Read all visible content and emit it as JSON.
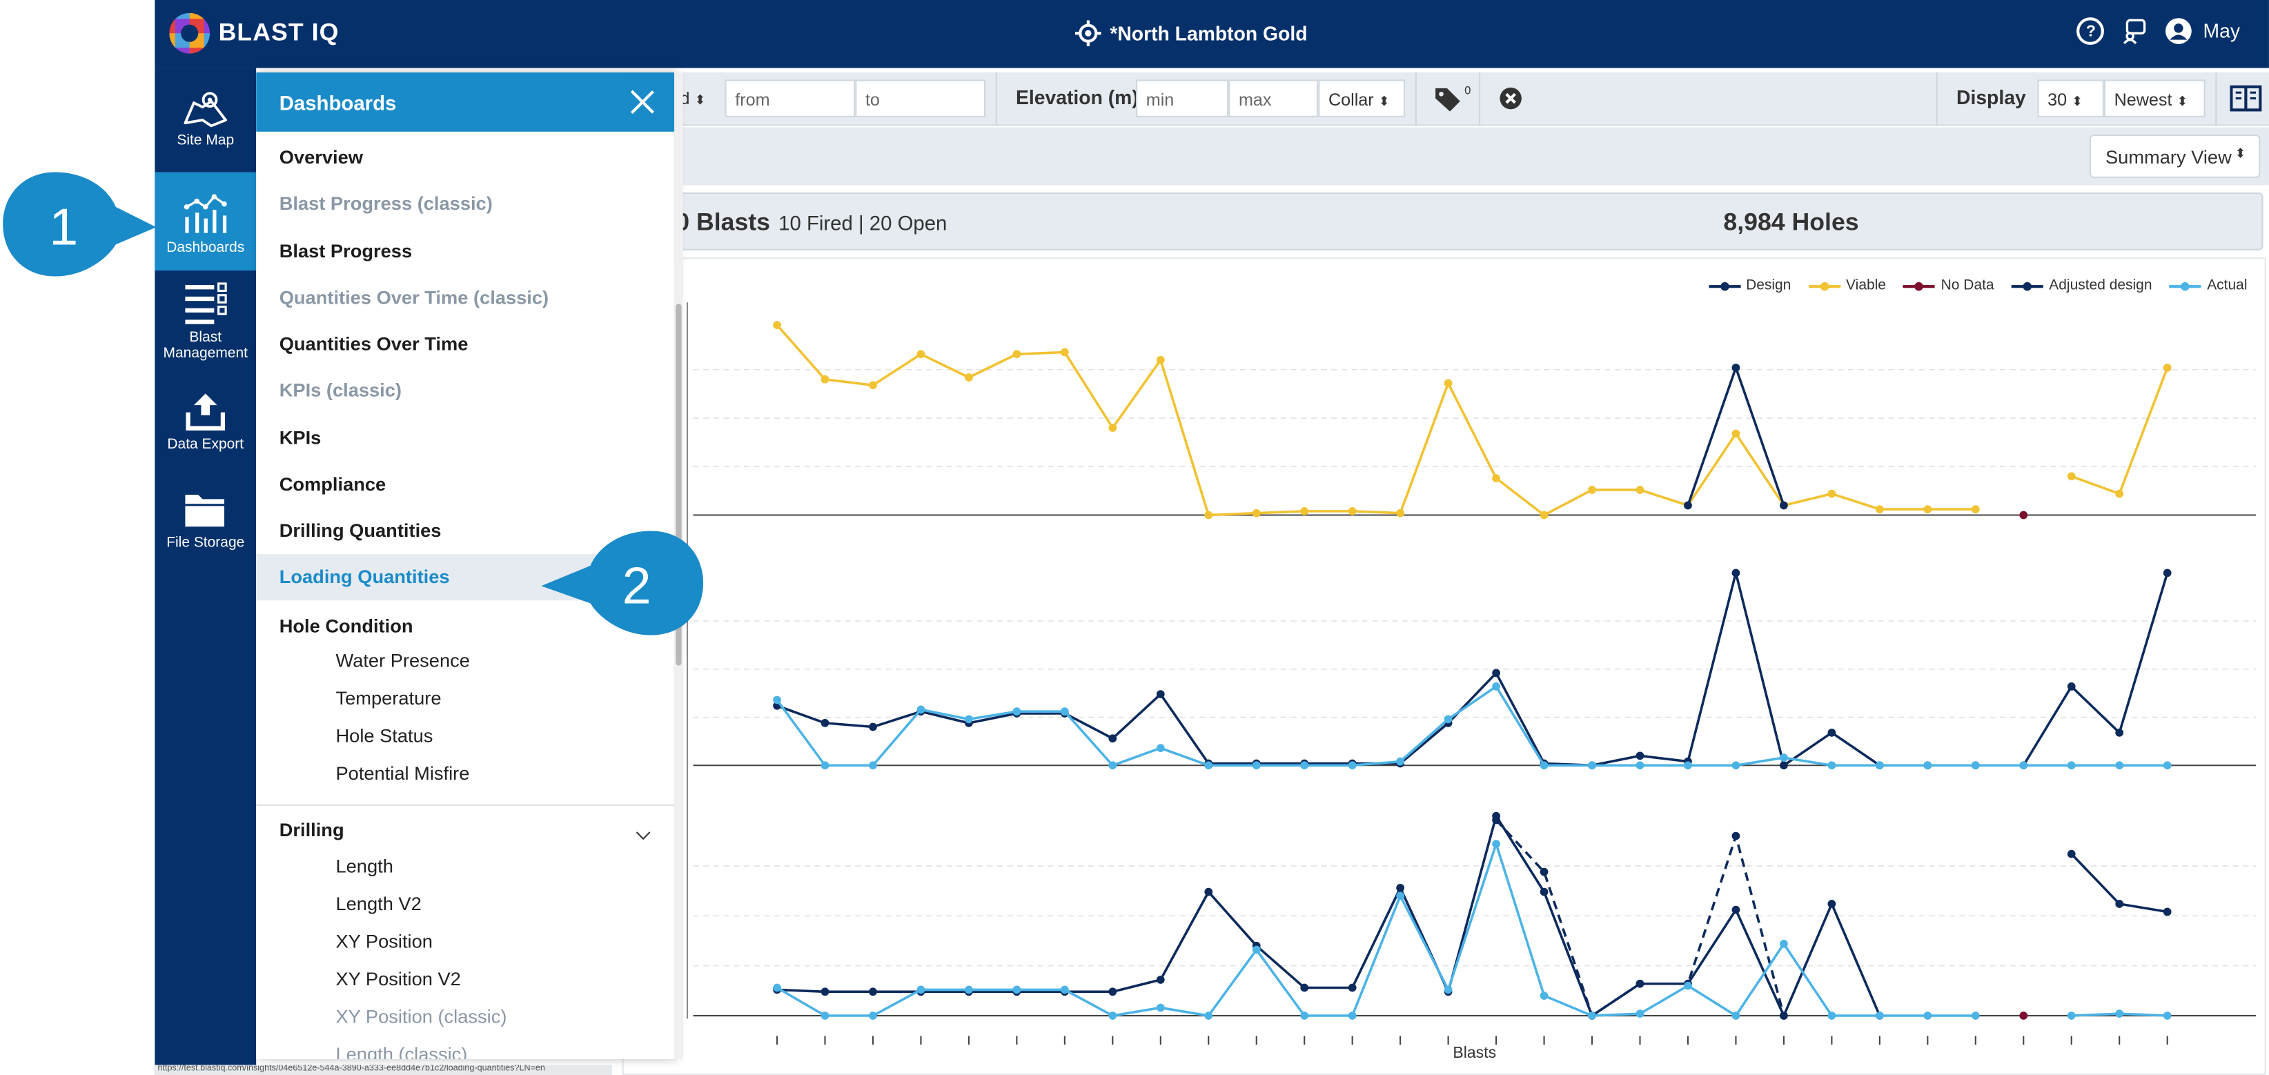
{
  "app": {
    "brand": "BLAST IQ",
    "site": "*North Lambton Gold"
  },
  "header": {
    "user": "May"
  },
  "rail": [
    {
      "key": "site-map",
      "label": "Site Map"
    },
    {
      "key": "dashboards",
      "label": "Dashboards"
    },
    {
      "key": "blast-management",
      "label1": "Blast",
      "label2": "Management"
    },
    {
      "key": "data-export",
      "label": "Data Export"
    },
    {
      "key": "file-storage",
      "label": "File Storage"
    }
  ],
  "filters": {
    "partial_select": "d",
    "from_placeholder": "from",
    "to_placeholder": "to",
    "elevation_label": "Elevation (m)",
    "min_placeholder": "min",
    "max_placeholder": "max",
    "collar": "Collar",
    "tag_count": "0",
    "display_label": "Display",
    "display_count": "30",
    "sort": "Newest"
  },
  "summary_view": "Summary View",
  "stats": {
    "blasts": "0 Blasts",
    "fired_open": "10 Fired | 20 Open",
    "holes": "8,984 Holes"
  },
  "panel": {
    "title": "Dashboards",
    "items": [
      {
        "label": "Overview",
        "style": "bold"
      },
      {
        "label": "Blast Progress (classic)",
        "style": "muted"
      },
      {
        "label": "Blast Progress",
        "style": "bold"
      },
      {
        "label": "Quantities Over Time (classic)",
        "style": "muted"
      },
      {
        "label": "Quantities Over Time",
        "style": "bold"
      },
      {
        "label": "KPIs (classic)",
        "style": "muted"
      },
      {
        "label": "KPIs",
        "style": "bold"
      },
      {
        "label": "Compliance",
        "style": "bold"
      },
      {
        "label": "Drilling Quantities",
        "style": "bold"
      },
      {
        "label": "Loading Quantities",
        "style": "active"
      },
      {
        "label": "Hole Condition",
        "style": "bold"
      },
      {
        "label": "Water Presence",
        "style": "sub"
      },
      {
        "label": "Temperature",
        "style": "sub"
      },
      {
        "label": "Hole Status",
        "style": "sub"
      },
      {
        "label": "Potential Misfire",
        "style": "sub"
      },
      {
        "label": "Drilling",
        "style": "bold"
      },
      {
        "label": "Length",
        "style": "sub"
      },
      {
        "label": "Length V2",
        "style": "sub"
      },
      {
        "label": "XY Position",
        "style": "sub"
      },
      {
        "label": "XY Position V2",
        "style": "sub"
      },
      {
        "label": "XY Position (classic)",
        "style": "submuted"
      },
      {
        "label": "Length (classic)",
        "style": "submuted"
      }
    ]
  },
  "callouts": [
    "1",
    "2"
  ],
  "status_url": "https://test.blastiq.com/insights/04e6512e-544a-3890-a333-ee8dd4e7b1c2/loading-quantities?LN=en",
  "chart_data": {
    "type": "line",
    "xlabel": "Blasts",
    "legend": [
      {
        "name": "Design",
        "color": "#0d2a5c"
      },
      {
        "name": "Viable",
        "color": "#f1c232"
      },
      {
        "name": "No Data",
        "color": "#7a0f2e"
      },
      {
        "name": "Adjusted design",
        "color": "#0d2a5c",
        "dash": true
      },
      {
        "name": "Actual",
        "color": "#4cb3e6"
      }
    ],
    "x": [
      1,
      2,
      3,
      4,
      5,
      6,
      7,
      8,
      9,
      10,
      11,
      12,
      13,
      14,
      15,
      16,
      17,
      18,
      19,
      20,
      21,
      22,
      23,
      24,
      25,
      26,
      27,
      28,
      29,
      30
    ],
    "panels": [
      {
        "ylim": [
          0,
          1
        ],
        "series": [
          {
            "name": "Viable",
            "color": "#f1c232",
            "values": [
              0.98,
              0.7,
              0.67,
              0.83,
              0.71,
              0.83,
              0.84,
              0.45,
              0.8,
              0.0,
              0.01,
              0.02,
              0.02,
              0.01,
              0.68,
              0.19,
              0.0,
              0.13,
              0.13,
              0.05,
              0.42,
              0.05,
              0.11,
              0.03,
              0.03,
              0.03,
              null,
              0.2,
              0.11,
              0.76
            ]
          },
          {
            "name": "Design",
            "color": "#0d2a5c",
            "values": [
              null,
              null,
              null,
              null,
              null,
              null,
              null,
              null,
              null,
              null,
              null,
              null,
              null,
              null,
              null,
              null,
              null,
              null,
              null,
              0.05,
              0.76,
              0.05,
              null,
              null,
              null,
              null,
              null,
              null,
              null,
              null
            ]
          },
          {
            "name": "No Data",
            "color": "#7a0f2e",
            "values": [
              null,
              null,
              null,
              null,
              null,
              null,
              null,
              null,
              null,
              null,
              null,
              null,
              null,
              null,
              null,
              null,
              null,
              null,
              null,
              null,
              null,
              null,
              null,
              null,
              null,
              null,
              0.0,
              null,
              null,
              null
            ]
          }
        ]
      },
      {
        "ylim": [
          0,
          1
        ],
        "series": [
          {
            "name": "Design",
            "color": "#0d2a5c",
            "values": [
              0.31,
              0.22,
              0.2,
              0.28,
              0.22,
              0.27,
              0.27,
              0.14,
              0.37,
              0.01,
              0.01,
              0.01,
              0.01,
              0.01,
              0.22,
              0.48,
              0.01,
              0.0,
              0.05,
              0.02,
              1.0,
              0.0,
              0.17,
              0.0,
              0.0,
              0.0,
              0.0,
              0.41,
              0.17,
              1.0
            ]
          },
          {
            "name": "Actual",
            "color": "#4cb3e6",
            "values": [
              0.34,
              0.0,
              0.0,
              0.29,
              0.24,
              0.28,
              0.28,
              0.0,
              0.09,
              0.0,
              0.0,
              0.0,
              0.0,
              0.02,
              0.24,
              0.41,
              0.0,
              0.0,
              0.0,
              0.0,
              0.0,
              0.04,
              0.0,
              0.0,
              0.0,
              0.0,
              0.0,
              0.0,
              0.0,
              0.0
            ]
          }
        ]
      },
      {
        "ylim": [
          0,
          1
        ],
        "series": [
          {
            "name": "Design",
            "color": "#0d2a5c",
            "values": [
              0.13,
              0.12,
              0.12,
              0.12,
              0.12,
              0.12,
              0.12,
              0.12,
              0.18,
              0.62,
              0.35,
              0.14,
              0.14,
              0.64,
              0.12,
              1.0,
              0.62,
              0.0,
              0.16,
              0.16,
              0.53,
              0.0,
              0.56,
              0.0,
              null,
              null,
              null,
              0.81,
              0.56,
              0.52
            ]
          },
          {
            "name": "Adjusted design",
            "color": "#0d2a5c",
            "dash": true,
            "values": [
              null,
              null,
              null,
              null,
              null,
              null,
              null,
              null,
              null,
              null,
              null,
              null,
              null,
              null,
              null,
              0.98,
              0.72,
              0.0,
              0.16,
              0.16,
              0.9,
              0.0,
              null,
              null,
              null,
              null,
              null,
              null,
              null,
              null
            ]
          },
          {
            "name": "Actual",
            "color": "#4cb3e6",
            "values": [
              0.14,
              0.0,
              0.0,
              0.13,
              0.13,
              0.13,
              0.13,
              0.0,
              0.04,
              0.0,
              0.33,
              0.0,
              0.0,
              0.6,
              0.13,
              0.86,
              0.1,
              0.0,
              0.01,
              0.15,
              0.0,
              0.36,
              0.0,
              0.0,
              0.0,
              0.0,
              null,
              0.0,
              0.01,
              0.0
            ]
          },
          {
            "name": "No Data",
            "color": "#7a0f2e",
            "values": [
              null,
              null,
              null,
              null,
              null,
              null,
              null,
              null,
              null,
              null,
              null,
              null,
              null,
              null,
              null,
              null,
              null,
              null,
              null,
              null,
              null,
              null,
              null,
              null,
              null,
              null,
              0.0,
              null,
              null,
              null
            ]
          }
        ]
      }
    ]
  }
}
